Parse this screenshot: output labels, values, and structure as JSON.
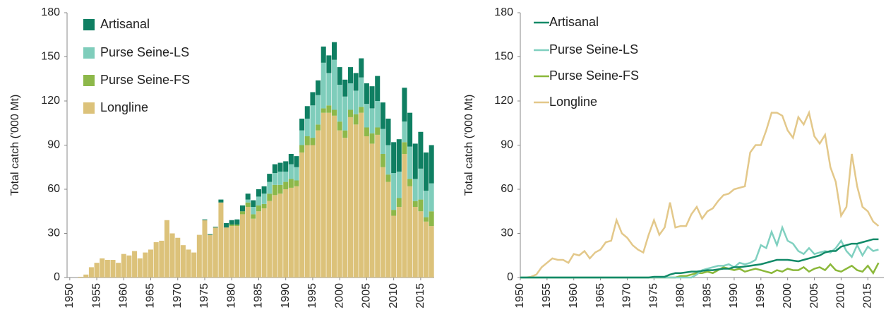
{
  "chart_data": [
    {
      "type": "stacked_bar",
      "y_label": "Total catch ('000 Mt)",
      "x": [
        1950,
        1951,
        1952,
        1953,
        1954,
        1955,
        1956,
        1957,
        1958,
        1959,
        1960,
        1961,
        1962,
        1963,
        1964,
        1965,
        1966,
        1967,
        1968,
        1969,
        1970,
        1971,
        1972,
        1973,
        1974,
        1975,
        1976,
        1977,
        1978,
        1979,
        1980,
        1981,
        1982,
        1983,
        1984,
        1985,
        1986,
        1987,
        1988,
        1989,
        1990,
        1991,
        1992,
        1993,
        1994,
        1995,
        1996,
        1997,
        1998,
        1999,
        2000,
        2001,
        2002,
        2003,
        2004,
        2005,
        2006,
        2007,
        2008,
        2009,
        2010,
        2011,
        2012,
        2013,
        2014,
        2015,
        2016,
        2017
      ],
      "xlim": [
        1949.5,
        2017.5
      ],
      "xticks": [
        1950,
        1955,
        1960,
        1965,
        1970,
        1975,
        1980,
        1985,
        1990,
        1995,
        2000,
        2005,
        2010,
        2015
      ],
      "ylim": [
        0,
        180
      ],
      "yticks": [
        0,
        30,
        60,
        90,
        120,
        150,
        180
      ],
      "series": [
        {
          "name": "Artisanal",
          "color": "#0f7f62",
          "values": [
            0,
            0,
            0,
            0,
            0,
            0,
            0,
            0,
            0,
            0,
            0,
            0,
            0,
            0,
            0,
            0,
            0,
            0,
            0,
            0,
            0,
            0,
            0,
            0,
            0,
            0.5,
            0.5,
            0.5,
            2,
            3,
            3,
            3.5,
            4,
            4,
            4.5,
            5,
            5,
            5.5,
            6,
            6,
            7,
            7,
            7.5,
            8,
            8.5,
            9,
            10,
            11,
            12,
            12,
            12,
            11.5,
            11,
            12,
            13,
            14,
            15,
            17,
            18,
            18,
            21,
            22,
            23,
            23,
            24,
            25,
            26,
            26
          ]
        },
        {
          "name": "Purse Seine-LS",
          "color": "#7fcdbb",
          "values": [
            0,
            0,
            0,
            0,
            0,
            0,
            0,
            0,
            0,
            0,
            0,
            0,
            0,
            0,
            0,
            0,
            0,
            0,
            0,
            0,
            0,
            0,
            0,
            0,
            0,
            0,
            0,
            0,
            0,
            0,
            0,
            0,
            0,
            2,
            5,
            6,
            7,
            8,
            8,
            9,
            7,
            10,
            9,
            10,
            12,
            22,
            20,
            31,
            22,
            34,
            25,
            23,
            18,
            16,
            20,
            16,
            17,
            18,
            17,
            20,
            25,
            18,
            14,
            22,
            15,
            21,
            18,
            19
          ]
        },
        {
          "name": "Purse Seine-FS",
          "color": "#8db84a",
          "values": [
            0,
            0,
            0,
            0,
            0,
            0,
            0,
            0,
            0,
            0,
            0,
            0,
            0,
            0,
            0,
            0,
            0,
            0,
            0,
            0,
            0,
            0,
            0,
            0,
            0,
            0,
            0,
            0,
            0,
            0,
            1,
            1,
            2,
            3,
            3,
            4,
            3,
            5,
            7,
            6,
            5,
            6,
            4,
            5,
            6,
            5,
            4,
            3,
            5,
            4,
            6,
            5,
            5,
            7,
            4,
            6,
            7,
            5,
            9,
            5,
            4,
            6,
            8,
            5,
            4,
            8,
            3,
            10
          ]
        },
        {
          "name": "Longline",
          "color": "#dcc27a",
          "values": [
            0,
            0,
            0.5,
            2,
            7,
            10,
            13,
            12,
            12,
            10,
            16,
            15,
            18,
            13,
            17,
            19,
            24,
            25,
            39,
            30,
            27,
            22,
            19,
            17,
            29,
            39,
            29,
            34,
            51,
            34,
            35,
            35,
            43,
            48,
            40,
            45,
            47,
            52,
            56,
            57,
            60,
            61,
            62,
            85,
            90,
            90,
            100,
            112,
            112,
            110,
            100,
            95,
            109,
            104,
            112,
            96,
            91,
            97,
            75,
            65,
            42,
            48,
            84,
            62,
            48,
            45,
            38,
            35
          ]
        }
      ]
    },
    {
      "type": "line",
      "y_label": "Total catch ('000 Mt)",
      "x": [
        1950,
        1951,
        1952,
        1953,
        1954,
        1955,
        1956,
        1957,
        1958,
        1959,
        1960,
        1961,
        1962,
        1963,
        1964,
        1965,
        1966,
        1967,
        1968,
        1969,
        1970,
        1971,
        1972,
        1973,
        1974,
        1975,
        1976,
        1977,
        1978,
        1979,
        1980,
        1981,
        1982,
        1983,
        1984,
        1985,
        1986,
        1987,
        1988,
        1989,
        1990,
        1991,
        1992,
        1993,
        1994,
        1995,
        1996,
        1997,
        1998,
        1999,
        2000,
        2001,
        2002,
        2003,
        2004,
        2005,
        2006,
        2007,
        2008,
        2009,
        2010,
        2011,
        2012,
        2013,
        2014,
        2015,
        2016,
        2017
      ],
      "xlim": [
        1950,
        2018
      ],
      "xticks": [
        1950,
        1955,
        1960,
        1965,
        1970,
        1975,
        1980,
        1985,
        1990,
        1995,
        2000,
        2005,
        2010,
        2015
      ],
      "ylim": [
        0,
        180
      ],
      "yticks": [
        0,
        30,
        60,
        90,
        120,
        150,
        180
      ],
      "series": [
        {
          "name": "Artisanal",
          "color": "#128a68",
          "values": [
            0,
            0,
            0,
            0,
            0,
            0,
            0,
            0,
            0,
            0,
            0,
            0,
            0,
            0,
            0,
            0,
            0,
            0,
            0,
            0,
            0,
            0,
            0,
            0,
            0,
            0.5,
            0.5,
            0.5,
            2,
            3,
            3,
            3.5,
            4,
            4,
            4.5,
            5,
            5,
            5.5,
            6,
            6,
            7,
            7,
            7.5,
            8,
            8.5,
            9,
            10,
            11,
            12,
            12,
            12,
            11.5,
            11,
            12,
            13,
            14,
            15,
            17,
            18,
            18,
            21,
            22,
            23,
            23,
            24,
            25,
            26,
            26
          ]
        },
        {
          "name": "Purse Seine-LS",
          "color": "#80d0c0",
          "values": [
            0,
            0,
            0,
            0,
            0,
            0,
            0,
            0,
            0,
            0,
            0,
            0,
            0,
            0,
            0,
            0,
            0,
            0,
            0,
            0,
            0,
            0,
            0,
            0,
            0,
            0,
            0,
            0,
            0,
            0,
            0,
            0,
            0,
            2,
            5,
            6,
            7,
            8,
            8,
            9,
            7,
            10,
            9,
            10,
            12,
            22,
            20,
            31,
            22,
            34,
            25,
            23,
            18,
            16,
            20,
            16,
            17,
            18,
            17,
            20,
            25,
            18,
            14,
            22,
            15,
            21,
            18,
            19
          ]
        },
        {
          "name": "Purse Seine-FS",
          "color": "#8bb83a",
          "values": [
            0,
            0,
            0,
            0,
            0,
            0,
            0,
            0,
            0,
            0,
            0,
            0,
            0,
            0,
            0,
            0,
            0,
            0,
            0,
            0,
            0,
            0,
            0,
            0,
            0,
            0,
            0,
            0,
            0,
            0,
            1,
            1,
            2,
            3,
            3,
            4,
            3,
            5,
            7,
            6,
            5,
            6,
            4,
            5,
            6,
            5,
            4,
            3,
            5,
            4,
            6,
            5,
            5,
            7,
            4,
            6,
            7,
            5,
            9,
            5,
            4,
            6,
            8,
            5,
            4,
            8,
            3,
            10
          ]
        },
        {
          "name": "Longline",
          "color": "#e3c88a",
          "values": [
            0,
            0,
            0.5,
            2,
            7,
            10,
            13,
            12,
            12,
            10,
            16,
            15,
            18,
            13,
            17,
            19,
            24,
            25,
            39,
            30,
            27,
            22,
            19,
            17,
            29,
            39,
            29,
            34,
            51,
            34,
            35,
            35,
            43,
            48,
            40,
            45,
            47,
            52,
            56,
            57,
            60,
            61,
            62,
            85,
            90,
            90,
            100,
            112,
            112,
            110,
            100,
            95,
            109,
            104,
            112,
            96,
            91,
            97,
            75,
            65,
            42,
            48,
            84,
            62,
            48,
            45,
            38,
            35
          ]
        }
      ]
    }
  ]
}
